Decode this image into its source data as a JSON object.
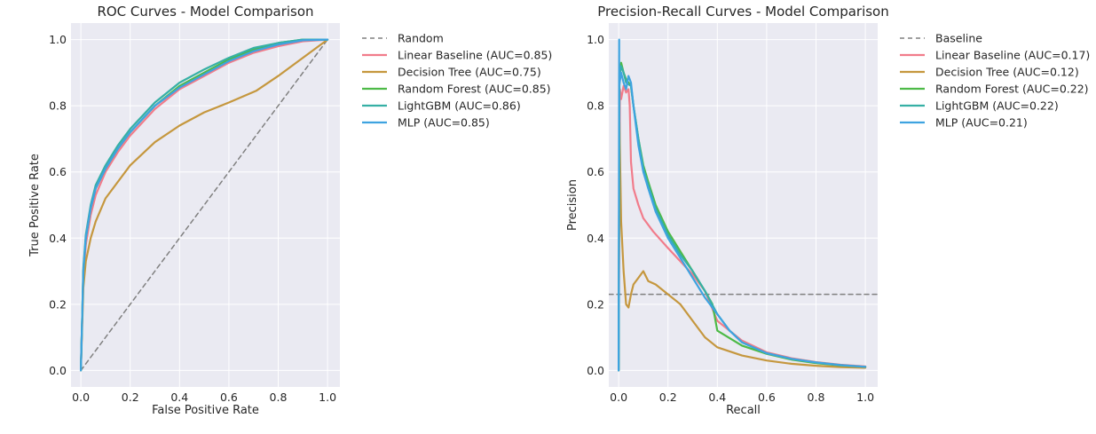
{
  "chart_data": [
    {
      "type": "line",
      "title": "ROC Curves - Model Comparison",
      "xlabel": "False Positive Rate",
      "ylabel": "True Positive Rate",
      "xlim": [
        -0.04,
        1.05
      ],
      "ylim": [
        -0.05,
        1.05
      ],
      "xticks": [
        "0.0",
        "0.2",
        "0.4",
        "0.6",
        "0.8",
        "1.0"
      ],
      "yticks": [
        "0.0",
        "0.2",
        "0.4",
        "0.6",
        "0.8",
        "1.0"
      ],
      "grid": true,
      "legend_position": "outside-right",
      "series": [
        {
          "name": "Random",
          "color": "#808080",
          "dash": true,
          "x": [
            0,
            1
          ],
          "y": [
            0,
            1
          ]
        },
        {
          "name": "Linear Baseline (AUC=0.85)",
          "color": "#f17c8b",
          "x": [
            0,
            0.01,
            0.02,
            0.04,
            0.06,
            0.1,
            0.15,
            0.2,
            0.3,
            0.4,
            0.5,
            0.6,
            0.7,
            0.8,
            0.9,
            1.0
          ],
          "y": [
            0,
            0.28,
            0.38,
            0.47,
            0.53,
            0.6,
            0.66,
            0.71,
            0.79,
            0.85,
            0.89,
            0.93,
            0.96,
            0.98,
            0.995,
            1.0
          ]
        },
        {
          "name": "Decision Tree (AUC=0.75)",
          "color": "#c5973e",
          "x": [
            0,
            0.01,
            0.02,
            0.04,
            0.06,
            0.1,
            0.15,
            0.2,
            0.3,
            0.4,
            0.5,
            0.6,
            0.71,
            0.8,
            0.9,
            1.0
          ],
          "y": [
            0,
            0.25,
            0.33,
            0.4,
            0.45,
            0.52,
            0.57,
            0.62,
            0.69,
            0.74,
            0.78,
            0.81,
            0.845,
            0.89,
            0.945,
            1.0
          ]
        },
        {
          "name": "Random Forest (AUC=0.85)",
          "color": "#4dba47",
          "x": [
            0,
            0.01,
            0.02,
            0.04,
            0.06,
            0.1,
            0.15,
            0.2,
            0.3,
            0.4,
            0.5,
            0.6,
            0.7,
            0.8,
            0.9,
            1.0
          ],
          "y": [
            0,
            0.3,
            0.4,
            0.49,
            0.55,
            0.61,
            0.67,
            0.72,
            0.8,
            0.86,
            0.9,
            0.94,
            0.97,
            0.99,
            1.0,
            1.0
          ]
        },
        {
          "name": "LightGBM (AUC=0.86)",
          "color": "#36b0a5",
          "x": [
            0,
            0.01,
            0.02,
            0.04,
            0.06,
            0.1,
            0.15,
            0.2,
            0.3,
            0.4,
            0.5,
            0.6,
            0.7,
            0.8,
            0.9,
            1.0
          ],
          "y": [
            0,
            0.31,
            0.41,
            0.5,
            0.56,
            0.62,
            0.68,
            0.73,
            0.81,
            0.87,
            0.91,
            0.945,
            0.975,
            0.99,
            1.0,
            1.0
          ]
        },
        {
          "name": "MLP (AUC=0.85)",
          "color": "#3ea3e0",
          "x": [
            0,
            0.01,
            0.02,
            0.04,
            0.06,
            0.1,
            0.15,
            0.2,
            0.3,
            0.4,
            0.5,
            0.6,
            0.7,
            0.8,
            0.9,
            1.0
          ],
          "y": [
            0,
            0.3,
            0.4,
            0.49,
            0.55,
            0.61,
            0.67,
            0.72,
            0.8,
            0.855,
            0.895,
            0.935,
            0.965,
            0.985,
            0.998,
            1.0
          ]
        }
      ]
    },
    {
      "type": "line",
      "title": "Precision-Recall Curves - Model Comparison",
      "xlabel": "Recall",
      "ylabel": "Precision",
      "xlim": [
        -0.04,
        1.05
      ],
      "ylim": [
        -0.05,
        1.05
      ],
      "xticks": [
        "0.0",
        "0.2",
        "0.4",
        "0.6",
        "0.8",
        "1.0"
      ],
      "yticks": [
        "0.0",
        "0.2",
        "0.4",
        "0.6",
        "0.8",
        "1.0"
      ],
      "grid": true,
      "legend_position": "outside-right",
      "series": [
        {
          "name": "Baseline",
          "color": "#808080",
          "dash": true,
          "x": [
            -0.04,
            1.05
          ],
          "y": [
            0.23,
            0.23
          ]
        },
        {
          "name": "Linear Baseline (AUC=0.17)",
          "color": "#f17c8b",
          "x": [
            0,
            0.005,
            0.01,
            0.02,
            0.03,
            0.04,
            0.045,
            0.05,
            0.06,
            0.08,
            0.1,
            0.14,
            0.2,
            0.25,
            0.3,
            0.35,
            0.4,
            0.5,
            0.6,
            0.7,
            0.8,
            0.9,
            1.0
          ],
          "y": [
            0,
            0.85,
            0.82,
            0.86,
            0.84,
            0.85,
            0.8,
            0.63,
            0.55,
            0.5,
            0.46,
            0.42,
            0.37,
            0.33,
            0.29,
            0.24,
            0.15,
            0.09,
            0.055,
            0.037,
            0.025,
            0.017,
            0.012
          ]
        },
        {
          "name": "Decision Tree (AUC=0.12)",
          "color": "#c5973e",
          "x": [
            0,
            0.003,
            0.01,
            0.02,
            0.03,
            0.04,
            0.05,
            0.06,
            0.08,
            0.1,
            0.12,
            0.15,
            0.2,
            0.25,
            0.3,
            0.35,
            0.4,
            0.5,
            0.6,
            0.7,
            0.8,
            0.9,
            1.0
          ],
          "y": [
            0,
            0.75,
            0.45,
            0.3,
            0.2,
            0.19,
            0.23,
            0.26,
            0.28,
            0.3,
            0.27,
            0.26,
            0.23,
            0.2,
            0.15,
            0.1,
            0.07,
            0.045,
            0.03,
            0.02,
            0.014,
            0.01,
            0.008
          ]
        },
        {
          "name": "Random Forest (AUC=0.22)",
          "color": "#4dba47",
          "x": [
            0,
            0.003,
            0.01,
            0.02,
            0.03,
            0.05,
            0.06,
            0.08,
            0.1,
            0.12,
            0.15,
            0.2,
            0.25,
            0.3,
            0.35,
            0.38,
            0.4,
            0.5,
            0.6,
            0.7,
            0.8,
            0.9,
            1.0
          ],
          "y": [
            0,
            0.9,
            0.93,
            0.9,
            0.88,
            0.86,
            0.8,
            0.7,
            0.62,
            0.57,
            0.5,
            0.42,
            0.36,
            0.3,
            0.24,
            0.2,
            0.12,
            0.075,
            0.05,
            0.033,
            0.022,
            0.015,
            0.011
          ]
        },
        {
          "name": "LightGBM (AUC=0.22)",
          "color": "#36b0a5",
          "x": [
            0,
            0.003,
            0.01,
            0.02,
            0.03,
            0.05,
            0.06,
            0.08,
            0.1,
            0.12,
            0.15,
            0.2,
            0.25,
            0.3,
            0.35,
            0.4,
            0.45,
            0.5,
            0.6,
            0.7,
            0.8,
            0.9,
            1.0
          ],
          "y": [
            0,
            0.88,
            0.92,
            0.9,
            0.87,
            0.86,
            0.8,
            0.7,
            0.61,
            0.56,
            0.49,
            0.41,
            0.35,
            0.3,
            0.24,
            0.17,
            0.12,
            0.085,
            0.052,
            0.035,
            0.024,
            0.016,
            0.011
          ]
        },
        {
          "name": "MLP (AUC=0.21)",
          "color": "#3ea3e0",
          "x": [
            0,
            0.002,
            0.002,
            0.01,
            0.02,
            0.03,
            0.04,
            0.05,
            0.06,
            0.08,
            0.1,
            0.12,
            0.15,
            0.2,
            0.25,
            0.3,
            0.35,
            0.4,
            0.45,
            0.5,
            0.6,
            0.7,
            0.8,
            0.9,
            1.0
          ],
          "y": [
            0,
            1.0,
            0.86,
            0.9,
            0.87,
            0.85,
            0.89,
            0.87,
            0.8,
            0.68,
            0.6,
            0.55,
            0.48,
            0.4,
            0.34,
            0.28,
            0.22,
            0.17,
            0.12,
            0.085,
            0.052,
            0.035,
            0.024,
            0.016,
            0.011
          ]
        }
      ]
    }
  ]
}
